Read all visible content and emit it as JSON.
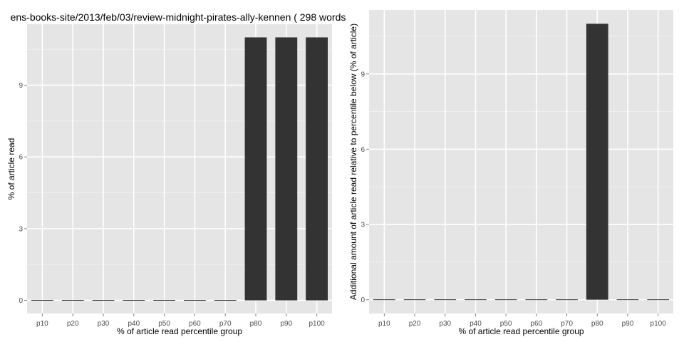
{
  "page_title": "ens-books-site/2013/feb/03/review-midnight-pirates-ally-kennen ( 298 words",
  "colors": {
    "panel_bg": "#e5e5e5",
    "grid_major": "#ffffff",
    "grid_minor": "#f2f2f2",
    "bar_fill": "#333333",
    "tick_text": "#4d4d4d"
  },
  "chart_data": [
    {
      "type": "bar",
      "title": "ens-books-site/2013/feb/03/review-midnight-pirates-ally-kennen ( 298 words",
      "xlabel": "% of article read percentile group",
      "ylabel": "% of article read",
      "categories": [
        "p10",
        "p20",
        "p30",
        "p40",
        "p50",
        "p60",
        "p70",
        "p80",
        "p90",
        "p100"
      ],
      "values": [
        0,
        0,
        0,
        0,
        0,
        0,
        0,
        11,
        11,
        11
      ],
      "yticks": [
        0,
        3,
        6,
        9
      ],
      "ylim": [
        -0.55,
        11.55
      ],
      "grid": true
    },
    {
      "type": "bar",
      "title": "",
      "xlabel": "% of article read percentile group",
      "ylabel": "Additional amount of article read relative to percentile below (% of article)",
      "categories": [
        "p10",
        "p20",
        "p30",
        "p40",
        "p50",
        "p60",
        "p70",
        "p80",
        "p90",
        "p100"
      ],
      "values": [
        0,
        0,
        0,
        0,
        0,
        0,
        0,
        11,
        0,
        0
      ],
      "yticks": [
        0,
        3,
        6,
        9
      ],
      "ylim": [
        -0.55,
        11.55
      ],
      "grid": true
    }
  ]
}
